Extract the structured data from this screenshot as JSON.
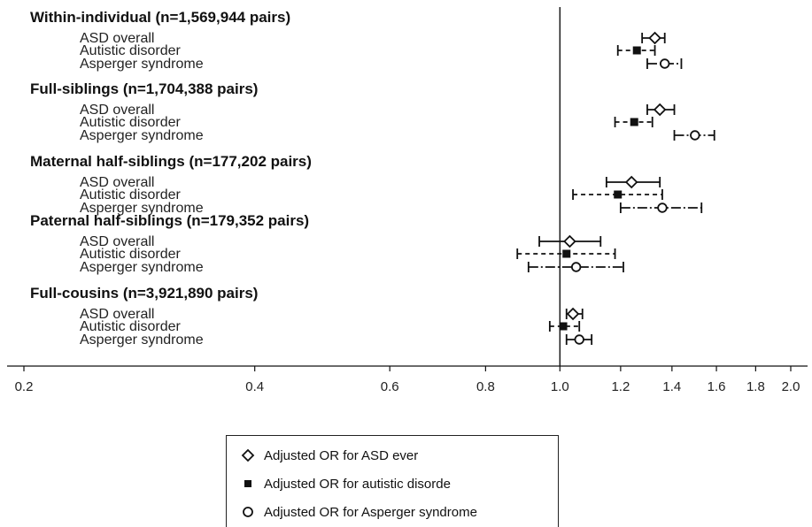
{
  "chart_data": {
    "type": "forest",
    "xscale": "log",
    "xlim": [
      0.2,
      2.0
    ],
    "xticks": [
      "0.2",
      "0.4",
      "0.6",
      "0.8",
      "1.0",
      "1.2",
      "1.4",
      "1.6",
      "1.8",
      "2.0"
    ],
    "reference_line": 1.0,
    "legend_position": "bottom",
    "groups": [
      {
        "title": "Within-individual (n=1,569,944 pairs)",
        "rows": [
          {
            "label": "ASD overall",
            "series": "asd",
            "or": 1.33,
            "lo": 1.28,
            "hi": 1.37
          },
          {
            "label": "Autistic disorder",
            "series": "autistic",
            "or": 1.26,
            "lo": 1.19,
            "hi": 1.33
          },
          {
            "label": "Asperger syndrome",
            "series": "asperger",
            "or": 1.37,
            "lo": 1.3,
            "hi": 1.44
          }
        ]
      },
      {
        "title": "Full-siblings (n=1,704,388 pairs)",
        "rows": [
          {
            "label": "ASD overall",
            "series": "asd",
            "or": 1.35,
            "lo": 1.3,
            "hi": 1.41
          },
          {
            "label": "Autistic disorder",
            "series": "autistic",
            "or": 1.25,
            "lo": 1.18,
            "hi": 1.32
          },
          {
            "label": "Asperger syndrome",
            "series": "asperger",
            "or": 1.5,
            "lo": 1.41,
            "hi": 1.59
          }
        ]
      },
      {
        "title": "Maternal half-siblings (n=177,202 pairs)",
        "rows": [
          {
            "label": "ASD overall",
            "series": "asd",
            "or": 1.24,
            "lo": 1.15,
            "hi": 1.35
          },
          {
            "label": "Autistic disorder",
            "series": "autistic",
            "or": 1.19,
            "lo": 1.04,
            "hi": 1.36
          },
          {
            "label": "Asperger syndrome",
            "series": "asperger",
            "or": 1.36,
            "lo": 1.2,
            "hi": 1.53
          }
        ]
      },
      {
        "title": "Paternal half-siblings (n=179,352 pairs)",
        "rows": [
          {
            "label": "ASD overall",
            "series": "asd",
            "or": 1.03,
            "lo": 0.94,
            "hi": 1.13
          },
          {
            "label": "Autistic disorder",
            "series": "autistic",
            "or": 1.02,
            "lo": 0.88,
            "hi": 1.18
          },
          {
            "label": "Asperger syndrome",
            "series": "asperger",
            "or": 1.05,
            "lo": 0.91,
            "hi": 1.21
          }
        ]
      },
      {
        "title": "Full-cousins (n=3,921,890 pairs)",
        "rows": [
          {
            "label": "ASD overall",
            "series": "asd",
            "or": 1.04,
            "lo": 1.02,
            "hi": 1.07
          },
          {
            "label": "Autistic disorder",
            "series": "autistic",
            "or": 1.01,
            "lo": 0.97,
            "hi": 1.06
          },
          {
            "label": "Asperger syndrome",
            "series": "asperger",
            "or": 1.06,
            "lo": 1.02,
            "hi": 1.1
          }
        ]
      }
    ],
    "legend": [
      {
        "series": "asd",
        "marker": "hollow-diamond",
        "label": "Adjusted OR for ASD ever"
      },
      {
        "series": "autistic",
        "marker": "filled-square",
        "label": "Adjusted OR for autistic disorde"
      },
      {
        "series": "asperger",
        "marker": "hollow-circle",
        "label": "Adjusted OR for Asperger syndrome"
      }
    ]
  }
}
